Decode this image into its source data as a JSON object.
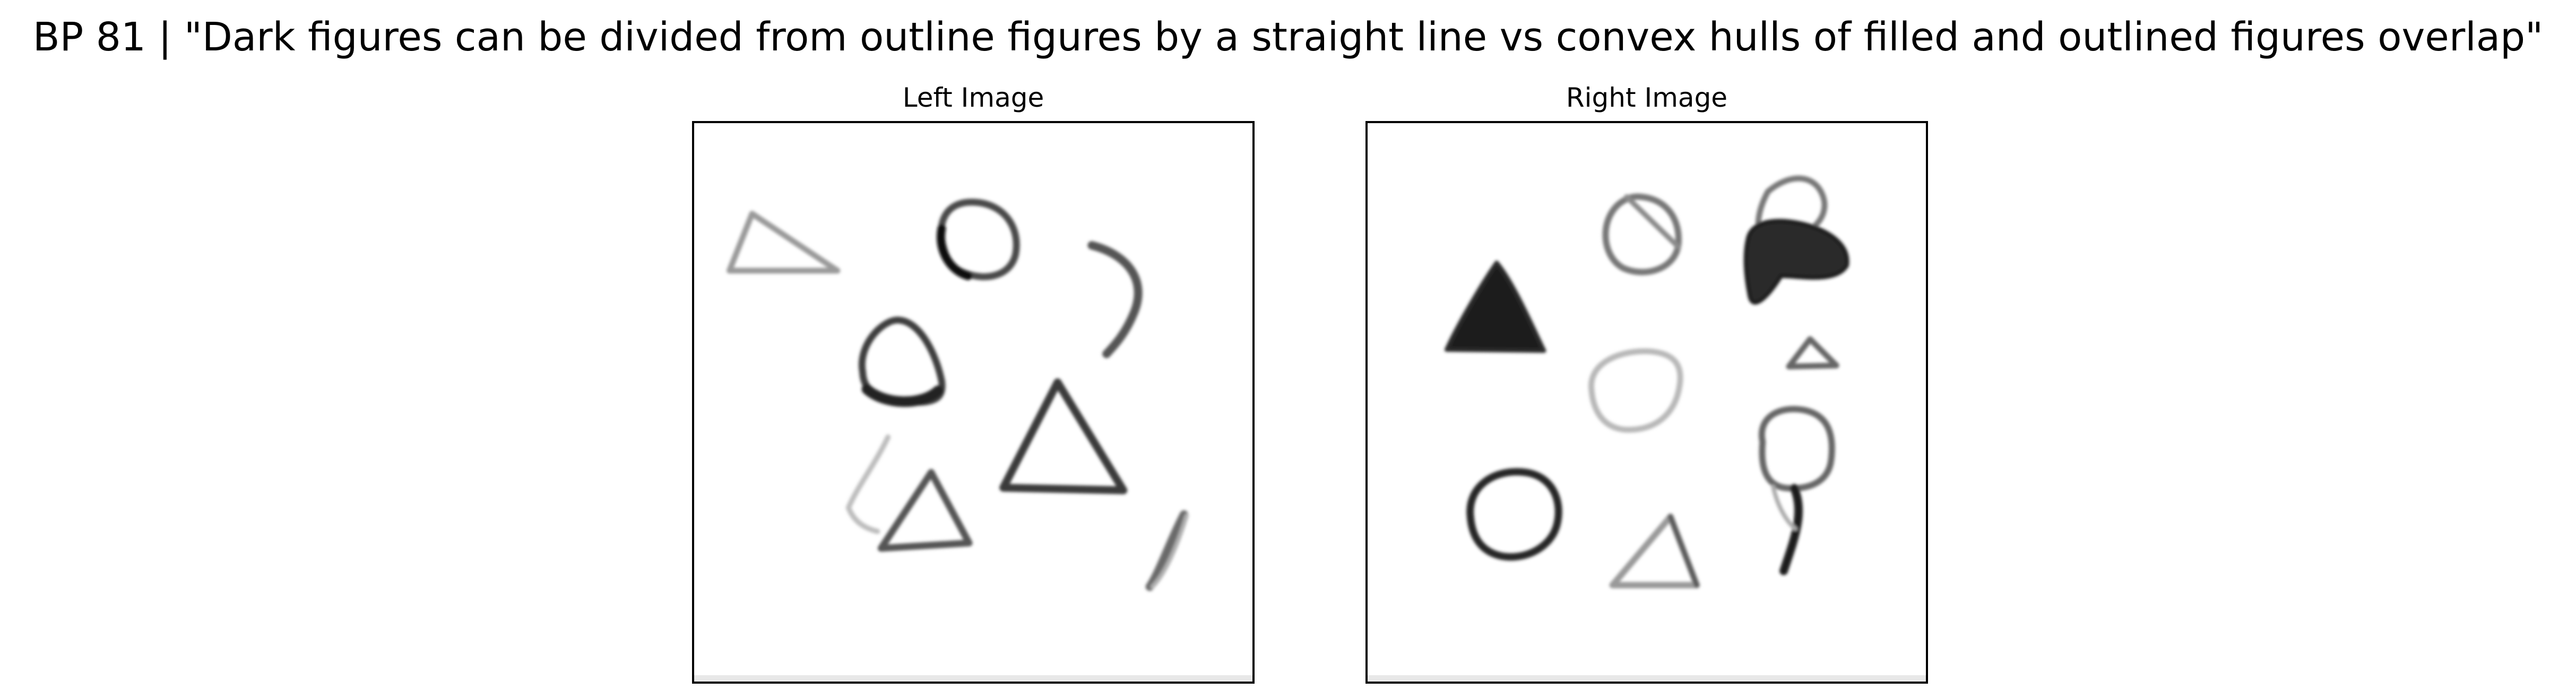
{
  "figure": {
    "title": "BP 81 | \"Dark figures can be divided from outline figures by a straight line vs convex hulls of filled and outlined figures overlap\""
  },
  "panels": [
    {
      "title": "Left Image"
    },
    {
      "title": "Right Image"
    }
  ]
}
